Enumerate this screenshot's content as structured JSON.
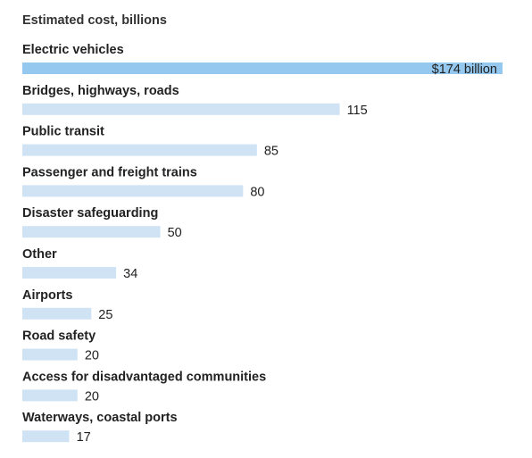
{
  "chart_data": {
    "type": "bar",
    "orientation": "horizontal",
    "title": "Estimated cost, billions",
    "categories": [
      "Electric vehicles",
      "Bridges, highways, roads",
      "Public transit",
      "Passenger and freight trains",
      "Disaster safeguarding",
      "Other",
      "Airports",
      "Road safety",
      "Access for disadvantaged communities",
      "Waterways, coastal ports"
    ],
    "values": [
      174,
      115,
      85,
      80,
      50,
      34,
      25,
      20,
      20,
      17
    ],
    "value_labels": [
      "$174 billion",
      "115",
      "85",
      "80",
      "50",
      "34",
      "25",
      "20",
      "20",
      "17"
    ],
    "xlim": [
      0,
      174
    ],
    "grid": false,
    "colors": {
      "highlight": "#94c8ee",
      "default": "#cfe3f5"
    }
  }
}
